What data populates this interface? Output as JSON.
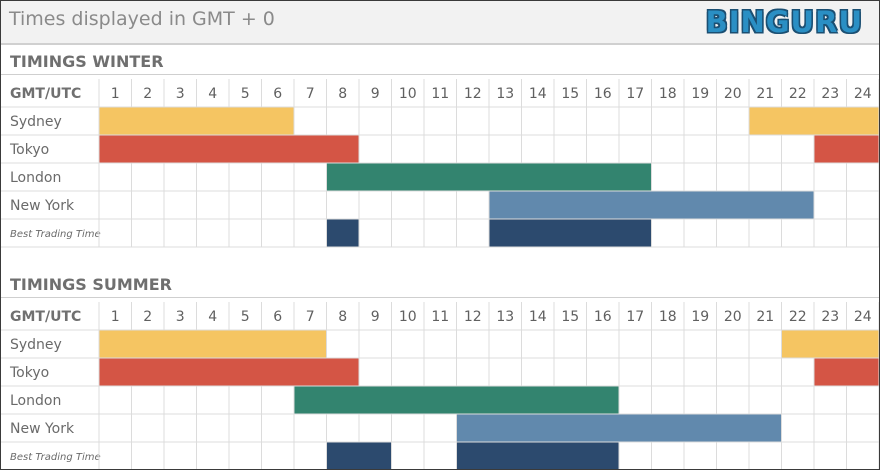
{
  "header": {
    "timezone_note": "Times displayed in GMT + 0",
    "logo": "BINGURU"
  },
  "colors": {
    "Sydney": "#f5c562",
    "Tokyo": "#d45545",
    "London": "#33846f",
    "New York": "#6189ad",
    "Best Trading Time": "#2c4a6e"
  },
  "chart_data": [
    {
      "type": "table",
      "title": "TIMINGS WINTER",
      "header_label": "GMT/UTC",
      "hours": [
        1,
        2,
        3,
        4,
        5,
        6,
        7,
        8,
        9,
        10,
        11,
        12,
        13,
        14,
        15,
        16,
        17,
        18,
        19,
        20,
        21,
        22,
        23,
        24
      ],
      "rows": [
        {
          "label": "Sydney",
          "segments": [
            [
              1,
              6
            ],
            [
              21,
              24
            ]
          ]
        },
        {
          "label": "Tokyo",
          "segments": [
            [
              1,
              8
            ],
            [
              23,
              24
            ]
          ]
        },
        {
          "label": "London",
          "segments": [
            [
              8,
              17
            ]
          ]
        },
        {
          "label": "New York",
          "segments": [
            [
              13,
              22
            ]
          ]
        },
        {
          "label": "Best Trading Time",
          "segments": [
            [
              8,
              8
            ],
            [
              13,
              17
            ]
          ]
        }
      ]
    },
    {
      "type": "table",
      "title": "TIMINGS SUMMER",
      "header_label": "GMT/UTC",
      "hours": [
        1,
        2,
        3,
        4,
        5,
        6,
        7,
        8,
        9,
        10,
        11,
        12,
        13,
        14,
        15,
        16,
        17,
        18,
        19,
        20,
        21,
        22,
        23,
        24
      ],
      "rows": [
        {
          "label": "Sydney",
          "segments": [
            [
              1,
              7
            ],
            [
              22,
              24
            ]
          ]
        },
        {
          "label": "Tokyo",
          "segments": [
            [
              1,
              8
            ],
            [
              23,
              24
            ]
          ]
        },
        {
          "label": "London",
          "segments": [
            [
              7,
              16
            ]
          ]
        },
        {
          "label": "New York",
          "segments": [
            [
              12,
              21
            ]
          ]
        },
        {
          "label": "Best Trading Time",
          "segments": [
            [
              8,
              9
            ],
            [
              12,
              16
            ]
          ]
        }
      ]
    }
  ]
}
